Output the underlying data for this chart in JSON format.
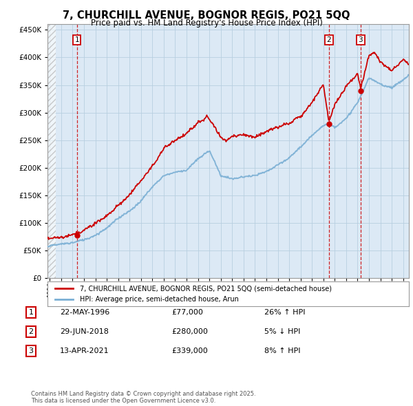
{
  "title": "7, CHURCHILL AVENUE, BOGNOR REGIS, PO21 5QQ",
  "subtitle": "Price paid vs. HM Land Registry's House Price Index (HPI)",
  "legend_line1": "7, CHURCHILL AVENUE, BOGNOR REGIS, PO21 5QQ (semi-detached house)",
  "legend_line2": "HPI: Average price, semi-detached house, Arun",
  "footnote": "Contains HM Land Registry data © Crown copyright and database right 2025.\nThis data is licensed under the Open Government Licence v3.0.",
  "transactions": [
    {
      "num": 1,
      "date": "22-MAY-1996",
      "price": "77,000",
      "hpi_pct": "26%",
      "hpi_dir": "↑",
      "year": 1996.38,
      "price_val": 77000
    },
    {
      "num": 2,
      "date": "29-JUN-2018",
      "price": "280,000",
      "hpi_pct": "5%",
      "hpi_dir": "↓",
      "year": 2018.49,
      "price_val": 280000
    },
    {
      "num": 3,
      "date": "13-APR-2021",
      "price": "339,000",
      "hpi_pct": "8%",
      "hpi_dir": "↑",
      "year": 2021.27,
      "price_val": 339000
    }
  ],
  "price_color": "#cc0000",
  "hpi_color": "#7aafd4",
  "vline_color": "#cc0000",
  "dot_color": "#cc0000",
  "chart_bg": "#dce9f5",
  "ylim": [
    0,
    460000
  ],
  "yticks": [
    0,
    50000,
    100000,
    150000,
    200000,
    250000,
    300000,
    350000,
    400000,
    450000
  ],
  "xlim_start": 1993.8,
  "xlim_end": 2025.5,
  "background_color": "#ffffff",
  "grid_color": "#b8cfe0",
  "title_fontsize": 10.5,
  "subtitle_fontsize": 8.5,
  "hpi_key_t": [
    1993.8,
    1995.0,
    1996.0,
    1997.0,
    1998.0,
    1999.0,
    2000.0,
    2001.0,
    2002.0,
    2003.0,
    2004.0,
    2005.0,
    2006.0,
    2007.0,
    2008.0,
    2009.0,
    2010.0,
    2011.0,
    2012.0,
    2013.0,
    2014.0,
    2015.0,
    2016.0,
    2017.0,
    2018.0,
    2018.49,
    2019.0,
    2020.0,
    2021.0,
    2022.0,
    2023.0,
    2024.0,
    2025.0,
    2025.5
  ],
  "hpi_key_v": [
    58000,
    62000,
    65000,
    70000,
    78000,
    90000,
    107000,
    120000,
    140000,
    165000,
    185000,
    192000,
    195000,
    215000,
    230000,
    185000,
    178000,
    182000,
    185000,
    192000,
    205000,
    218000,
    238000,
    260000,
    278000,
    282000,
    275000,
    290000,
    320000,
    365000,
    355000,
    348000,
    360000,
    368000
  ],
  "prop_key_t": [
    1993.8,
    1995.0,
    1996.0,
    1996.38,
    1997.0,
    1998.0,
    1999.0,
    2000.0,
    2001.0,
    2002.0,
    2003.0,
    2004.0,
    2005.0,
    2006.0,
    2007.0,
    2007.8,
    2008.5,
    2009.0,
    2009.5,
    2010.0,
    2011.0,
    2012.0,
    2013.0,
    2014.0,
    2015.0,
    2016.0,
    2017.0,
    2018.0,
    2018.49,
    2019.0,
    2020.0,
    2021.0,
    2021.27,
    2022.0,
    2022.5,
    2023.0,
    2024.0,
    2025.0,
    2025.5
  ],
  "prop_key_v": [
    72000,
    74000,
    76000,
    77000,
    82000,
    95000,
    110000,
    128000,
    148000,
    172000,
    200000,
    235000,
    248000,
    258000,
    278000,
    285000,
    265000,
    248000,
    240000,
    248000,
    255000,
    250000,
    262000,
    268000,
    275000,
    285000,
    310000,
    345000,
    280000,
    310000,
    340000,
    365000,
    339000,
    400000,
    405000,
    390000,
    375000,
    395000,
    388000
  ]
}
